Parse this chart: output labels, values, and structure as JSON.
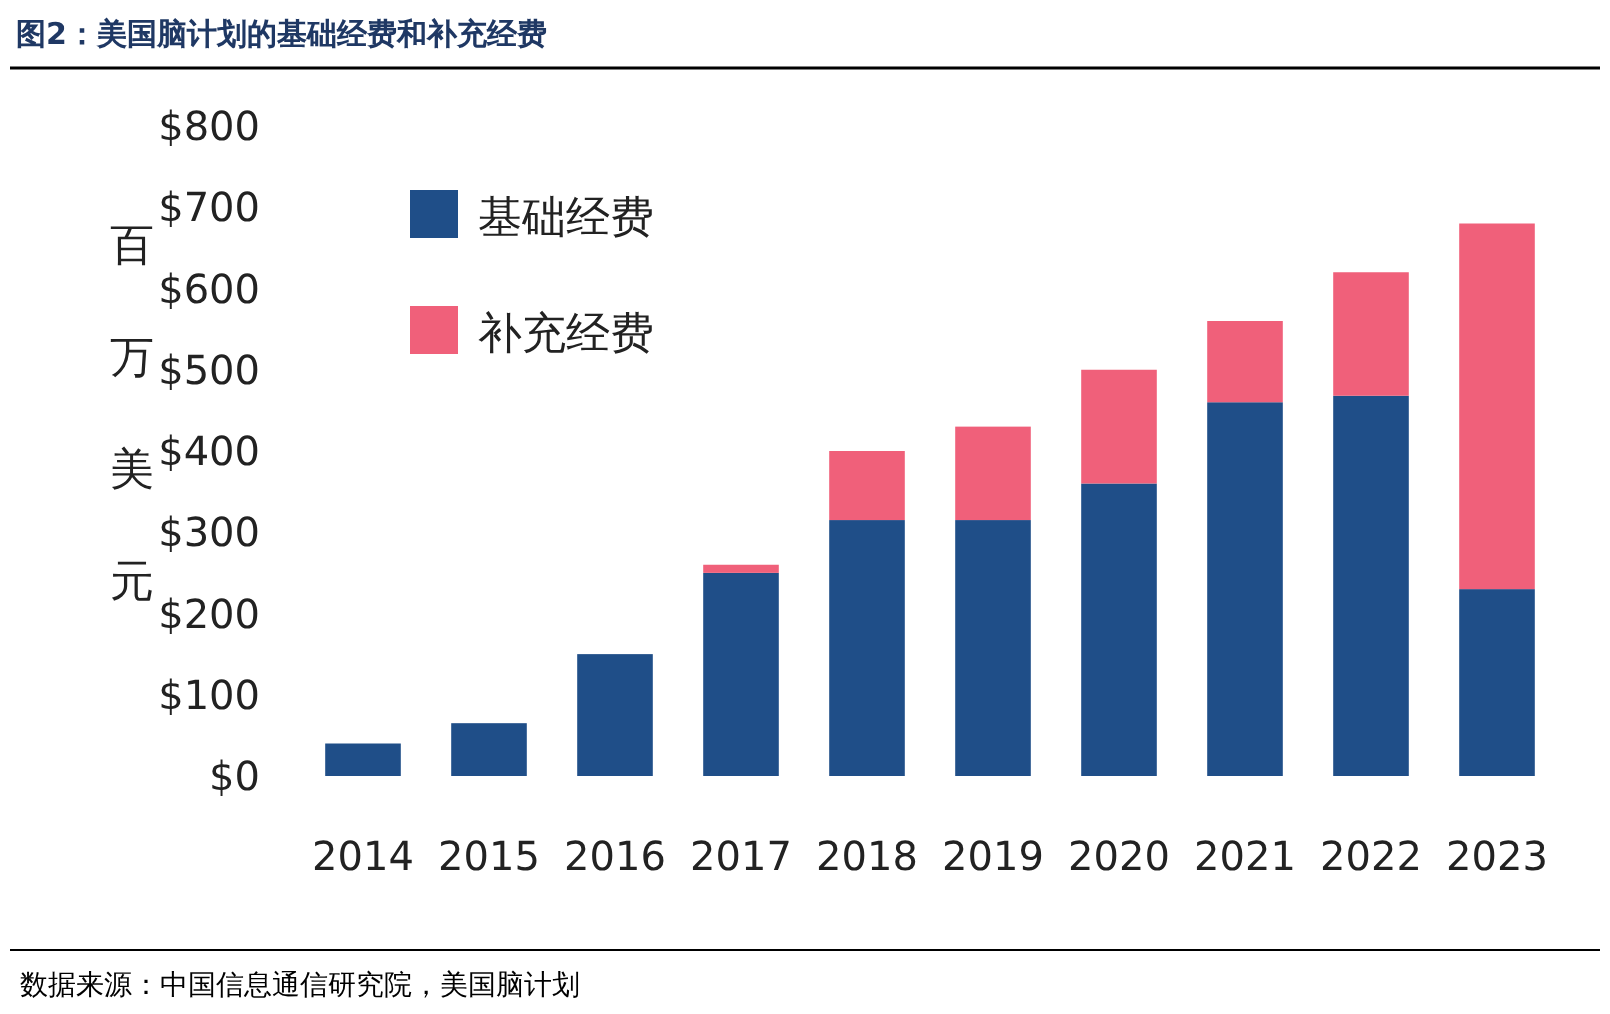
{
  "chart_data": {
    "type": "bar",
    "title": "图2：美国脑计划的基础经费和补充经费",
    "ylabel": "百万美元",
    "categories": [
      "2014",
      "2015",
      "2016",
      "2017",
      "2018",
      "2019",
      "2020",
      "2021",
      "2022",
      "2023"
    ],
    "stacked": true,
    "series": [
      {
        "name": "基础经费",
        "color": "#1f4e88",
        "values": [
          40,
          65,
          150,
          250,
          315,
          315,
          360,
          460,
          468,
          230
        ]
      },
      {
        "name": "补充经费",
        "color": "#f0607a",
        "values": [
          0,
          0,
          0,
          10,
          85,
          115,
          140,
          100,
          152,
          450
        ]
      }
    ],
    "ylim": [
      0,
      800
    ],
    "yticks": [
      {
        "value": 0,
        "label": "$0"
      },
      {
        "value": 100,
        "label": "$100"
      },
      {
        "value": 200,
        "label": "$200"
      },
      {
        "value": 300,
        "label": "$300"
      },
      {
        "value": 400,
        "label": "$400"
      },
      {
        "value": 500,
        "label": "$500"
      },
      {
        "value": 600,
        "label": "$600"
      },
      {
        "value": 700,
        "label": "$700"
      },
      {
        "value": 800,
        "label": "$800"
      }
    ],
    "grid": false,
    "legend": "top left",
    "annotations": [
      "数据来源：中国信息通信研究院，美国脑计划"
    ]
  }
}
